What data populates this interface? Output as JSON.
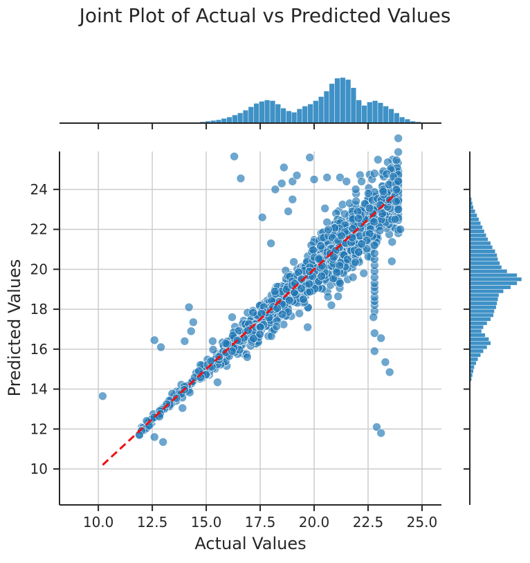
{
  "chart_data": {
    "type": "scatter",
    "title": "Joint Plot of Actual vs Predicted Values",
    "xlabel": "Actual Values",
    "ylabel": "Predicted Values",
    "xlim": [
      8.2,
      25.9
    ],
    "ylim": [
      8.2,
      25.9
    ],
    "grid": true,
    "x_ticks": [
      10.0,
      12.5,
      15.0,
      17.5,
      20.0,
      22.5,
      25.0
    ],
    "x_tick_labels": [
      "10.0",
      "12.5",
      "15.0",
      "17.5",
      "20.0",
      "22.5",
      "25.0"
    ],
    "y_ticks": [
      10,
      12,
      14,
      16,
      18,
      20,
      22,
      24
    ],
    "y_tick_labels": [
      "10",
      "12",
      "14",
      "16",
      "18",
      "20",
      "22",
      "24"
    ],
    "point_color": "#1f77b4",
    "reference_line": {
      "x": [
        10.2,
        23.8
      ],
      "y": [
        10.2,
        23.8
      ],
      "color": "#ee1111",
      "style": "dashed"
    },
    "outliers": [
      {
        "x": 10.2,
        "y": 13.65
      },
      {
        "x": 12.6,
        "y": 16.45
      },
      {
        "x": 12.9,
        "y": 16.1
      },
      {
        "x": 12.6,
        "y": 11.6
      },
      {
        "x": 13.0,
        "y": 11.35
      },
      {
        "x": 11.9,
        "y": 11.7
      },
      {
        "x": 13.9,
        "y": 13.05
      },
      {
        "x": 14.2,
        "y": 18.1
      },
      {
        "x": 14.4,
        "y": 17.35
      },
      {
        "x": 14.0,
        "y": 16.4
      },
      {
        "x": 14.3,
        "y": 16.9
      },
      {
        "x": 16.3,
        "y": 25.65
      },
      {
        "x": 16.6,
        "y": 24.55
      },
      {
        "x": 17.6,
        "y": 22.6
      },
      {
        "x": 18.6,
        "y": 25.1
      },
      {
        "x": 18.2,
        "y": 24.0
      },
      {
        "x": 18.5,
        "y": 24.3
      },
      {
        "x": 19.0,
        "y": 24.4
      },
      {
        "x": 19.8,
        "y": 25.6
      },
      {
        "x": 19.2,
        "y": 24.7
      },
      {
        "x": 20.0,
        "y": 24.5
      },
      {
        "x": 20.6,
        "y": 24.6
      },
      {
        "x": 21.2,
        "y": 24.6
      },
      {
        "x": 21.5,
        "y": 24.4
      },
      {
        "x": 22.8,
        "y": 24.8
      },
      {
        "x": 22.2,
        "y": 24.4
      },
      {
        "x": 23.2,
        "y": 23.9
      },
      {
        "x": 19.0,
        "y": 23.5
      },
      {
        "x": 18.8,
        "y": 22.9
      },
      {
        "x": 18.0,
        "y": 21.3
      },
      {
        "x": 16.9,
        "y": 15.6
      },
      {
        "x": 16.2,
        "y": 15.9
      },
      {
        "x": 19.5,
        "y": 18.5
      },
      {
        "x": 19.7,
        "y": 17.1
      },
      {
        "x": 20.8,
        "y": 18.2
      },
      {
        "x": 21.2,
        "y": 19.3
      },
      {
        "x": 21.8,
        "y": 19.6
      },
      {
        "x": 22.3,
        "y": 19.8
      },
      {
        "x": 22.8,
        "y": 16.8
      },
      {
        "x": 22.8,
        "y": 15.9
      },
      {
        "x": 23.1,
        "y": 16.55
      },
      {
        "x": 23.3,
        "y": 15.35
      },
      {
        "x": 23.5,
        "y": 14.85
      },
      {
        "x": 22.9,
        "y": 12.1
      },
      {
        "x": 23.1,
        "y": 11.8
      },
      {
        "x": 22.75,
        "y": 17.6
      },
      {
        "x": 23.9,
        "y": 23.0
      },
      {
        "x": 23.6,
        "y": 20.4
      },
      {
        "x": 24.0,
        "y": 22.0
      },
      {
        "x": 23.8,
        "y": 23.4
      },
      {
        "x": 15.3,
        "y": 16.4
      },
      {
        "x": 16.2,
        "y": 17.6
      }
    ],
    "vertical_cluster": {
      "x": 22.8,
      "y_values": [
        17.9,
        18.2,
        18.4,
        18.6,
        18.9,
        19.1,
        19.3,
        19.6,
        19.9,
        20.2,
        20.5,
        20.8,
        21.2
      ]
    },
    "dense_core": {
      "x_range": [
        11.9,
        23.9
      ],
      "slope": 1.0,
      "spread": "widens with x",
      "point_count": 1400
    },
    "marginal_x": {
      "type": "histogram",
      "bin_edges_start": 10.2,
      "bin_width": 0.25,
      "counts": [
        0,
        0,
        0,
        0,
        0,
        0,
        0,
        0,
        0,
        0,
        0,
        0,
        0,
        0,
        0,
        0,
        1,
        1,
        2,
        3,
        4,
        5,
        7,
        9,
        12,
        15,
        19,
        24,
        29,
        32,
        34,
        33,
        28,
        22,
        18,
        16,
        21,
        25,
        28,
        33,
        39,
        47,
        58,
        66,
        67,
        64,
        52,
        34,
        26,
        31,
        33,
        30,
        25,
        21,
        15,
        9,
        6,
        3,
        2,
        1,
        1,
        0,
        0,
        0,
        0,
        0,
        0,
        0,
        0,
        0,
        0
      ]
    },
    "marginal_y": {
      "type": "histogram",
      "bin_edges_start": 14.2,
      "bin_width": 0.2,
      "counts": [
        1,
        2,
        3,
        4,
        5,
        7,
        9,
        12,
        15,
        19,
        23,
        21,
        17,
        13,
        15,
        19,
        23,
        26,
        27,
        29,
        30,
        31,
        32,
        37,
        45,
        52,
        57,
        52,
        41,
        35,
        33,
        31,
        30,
        28,
        25,
        23,
        20,
        18,
        16,
        14,
        12,
        10,
        8,
        6,
        4,
        3,
        2,
        1
      ]
    }
  }
}
